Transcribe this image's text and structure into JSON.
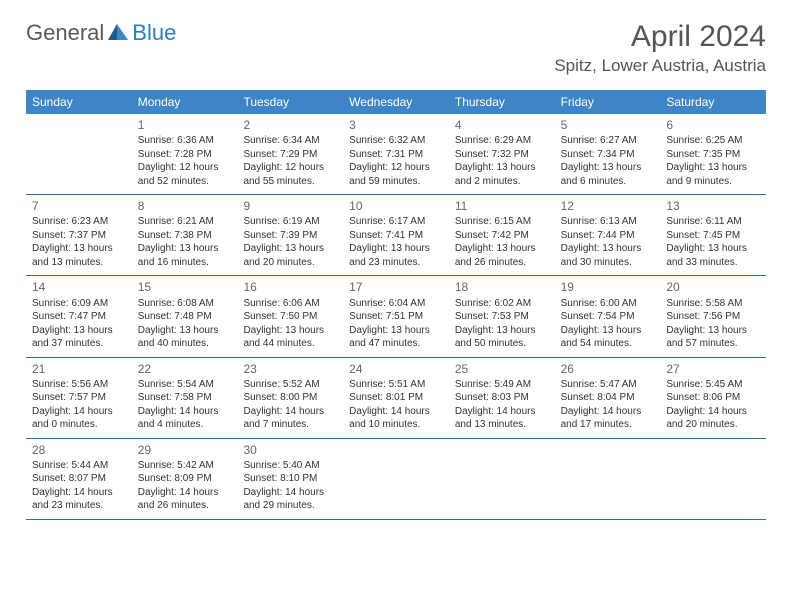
{
  "logo": {
    "general": "General",
    "blue": "Blue"
  },
  "title": "April 2024",
  "location": "Spitz, Lower Austria, Austria",
  "colors": {
    "header_bg": "#3d85c6",
    "header_text": "#ffffff",
    "row_border": "#2a6da8",
    "text": "#333333",
    "title_text": "#555555"
  },
  "day_headers": [
    "Sunday",
    "Monday",
    "Tuesday",
    "Wednesday",
    "Thursday",
    "Friday",
    "Saturday"
  ],
  "weeks": [
    [
      {
        "num": "",
        "lines": []
      },
      {
        "num": "1",
        "lines": [
          "Sunrise: 6:36 AM",
          "Sunset: 7:28 PM",
          "Daylight: 12 hours",
          "and 52 minutes."
        ]
      },
      {
        "num": "2",
        "lines": [
          "Sunrise: 6:34 AM",
          "Sunset: 7:29 PM",
          "Daylight: 12 hours",
          "and 55 minutes."
        ]
      },
      {
        "num": "3",
        "lines": [
          "Sunrise: 6:32 AM",
          "Sunset: 7:31 PM",
          "Daylight: 12 hours",
          "and 59 minutes."
        ]
      },
      {
        "num": "4",
        "lines": [
          "Sunrise: 6:29 AM",
          "Sunset: 7:32 PM",
          "Daylight: 13 hours",
          "and 2 minutes."
        ]
      },
      {
        "num": "5",
        "lines": [
          "Sunrise: 6:27 AM",
          "Sunset: 7:34 PM",
          "Daylight: 13 hours",
          "and 6 minutes."
        ]
      },
      {
        "num": "6",
        "lines": [
          "Sunrise: 6:25 AM",
          "Sunset: 7:35 PM",
          "Daylight: 13 hours",
          "and 9 minutes."
        ]
      }
    ],
    [
      {
        "num": "7",
        "lines": [
          "Sunrise: 6:23 AM",
          "Sunset: 7:37 PM",
          "Daylight: 13 hours",
          "and 13 minutes."
        ]
      },
      {
        "num": "8",
        "lines": [
          "Sunrise: 6:21 AM",
          "Sunset: 7:38 PM",
          "Daylight: 13 hours",
          "and 16 minutes."
        ]
      },
      {
        "num": "9",
        "lines": [
          "Sunrise: 6:19 AM",
          "Sunset: 7:39 PM",
          "Daylight: 13 hours",
          "and 20 minutes."
        ]
      },
      {
        "num": "10",
        "lines": [
          "Sunrise: 6:17 AM",
          "Sunset: 7:41 PM",
          "Daylight: 13 hours",
          "and 23 minutes."
        ]
      },
      {
        "num": "11",
        "lines": [
          "Sunrise: 6:15 AM",
          "Sunset: 7:42 PM",
          "Daylight: 13 hours",
          "and 26 minutes."
        ]
      },
      {
        "num": "12",
        "lines": [
          "Sunrise: 6:13 AM",
          "Sunset: 7:44 PM",
          "Daylight: 13 hours",
          "and 30 minutes."
        ]
      },
      {
        "num": "13",
        "lines": [
          "Sunrise: 6:11 AM",
          "Sunset: 7:45 PM",
          "Daylight: 13 hours",
          "and 33 minutes."
        ]
      }
    ],
    [
      {
        "num": "14",
        "lines": [
          "Sunrise: 6:09 AM",
          "Sunset: 7:47 PM",
          "Daylight: 13 hours",
          "and 37 minutes."
        ]
      },
      {
        "num": "15",
        "lines": [
          "Sunrise: 6:08 AM",
          "Sunset: 7:48 PM",
          "Daylight: 13 hours",
          "and 40 minutes."
        ]
      },
      {
        "num": "16",
        "lines": [
          "Sunrise: 6:06 AM",
          "Sunset: 7:50 PM",
          "Daylight: 13 hours",
          "and 44 minutes."
        ]
      },
      {
        "num": "17",
        "lines": [
          "Sunrise: 6:04 AM",
          "Sunset: 7:51 PM",
          "Daylight: 13 hours",
          "and 47 minutes."
        ]
      },
      {
        "num": "18",
        "lines": [
          "Sunrise: 6:02 AM",
          "Sunset: 7:53 PM",
          "Daylight: 13 hours",
          "and 50 minutes."
        ]
      },
      {
        "num": "19",
        "lines": [
          "Sunrise: 6:00 AM",
          "Sunset: 7:54 PM",
          "Daylight: 13 hours",
          "and 54 minutes."
        ]
      },
      {
        "num": "20",
        "lines": [
          "Sunrise: 5:58 AM",
          "Sunset: 7:56 PM",
          "Daylight: 13 hours",
          "and 57 minutes."
        ]
      }
    ],
    [
      {
        "num": "21",
        "lines": [
          "Sunrise: 5:56 AM",
          "Sunset: 7:57 PM",
          "Daylight: 14 hours",
          "and 0 minutes."
        ]
      },
      {
        "num": "22",
        "lines": [
          "Sunrise: 5:54 AM",
          "Sunset: 7:58 PM",
          "Daylight: 14 hours",
          "and 4 minutes."
        ]
      },
      {
        "num": "23",
        "lines": [
          "Sunrise: 5:52 AM",
          "Sunset: 8:00 PM",
          "Daylight: 14 hours",
          "and 7 minutes."
        ]
      },
      {
        "num": "24",
        "lines": [
          "Sunrise: 5:51 AM",
          "Sunset: 8:01 PM",
          "Daylight: 14 hours",
          "and 10 minutes."
        ]
      },
      {
        "num": "25",
        "lines": [
          "Sunrise: 5:49 AM",
          "Sunset: 8:03 PM",
          "Daylight: 14 hours",
          "and 13 minutes."
        ]
      },
      {
        "num": "26",
        "lines": [
          "Sunrise: 5:47 AM",
          "Sunset: 8:04 PM",
          "Daylight: 14 hours",
          "and 17 minutes."
        ]
      },
      {
        "num": "27",
        "lines": [
          "Sunrise: 5:45 AM",
          "Sunset: 8:06 PM",
          "Daylight: 14 hours",
          "and 20 minutes."
        ]
      }
    ],
    [
      {
        "num": "28",
        "lines": [
          "Sunrise: 5:44 AM",
          "Sunset: 8:07 PM",
          "Daylight: 14 hours",
          "and 23 minutes."
        ]
      },
      {
        "num": "29",
        "lines": [
          "Sunrise: 5:42 AM",
          "Sunset: 8:09 PM",
          "Daylight: 14 hours",
          "and 26 minutes."
        ]
      },
      {
        "num": "30",
        "lines": [
          "Sunrise: 5:40 AM",
          "Sunset: 8:10 PM",
          "Daylight: 14 hours",
          "and 29 minutes."
        ]
      },
      {
        "num": "",
        "lines": []
      },
      {
        "num": "",
        "lines": []
      },
      {
        "num": "",
        "lines": []
      },
      {
        "num": "",
        "lines": []
      }
    ]
  ]
}
